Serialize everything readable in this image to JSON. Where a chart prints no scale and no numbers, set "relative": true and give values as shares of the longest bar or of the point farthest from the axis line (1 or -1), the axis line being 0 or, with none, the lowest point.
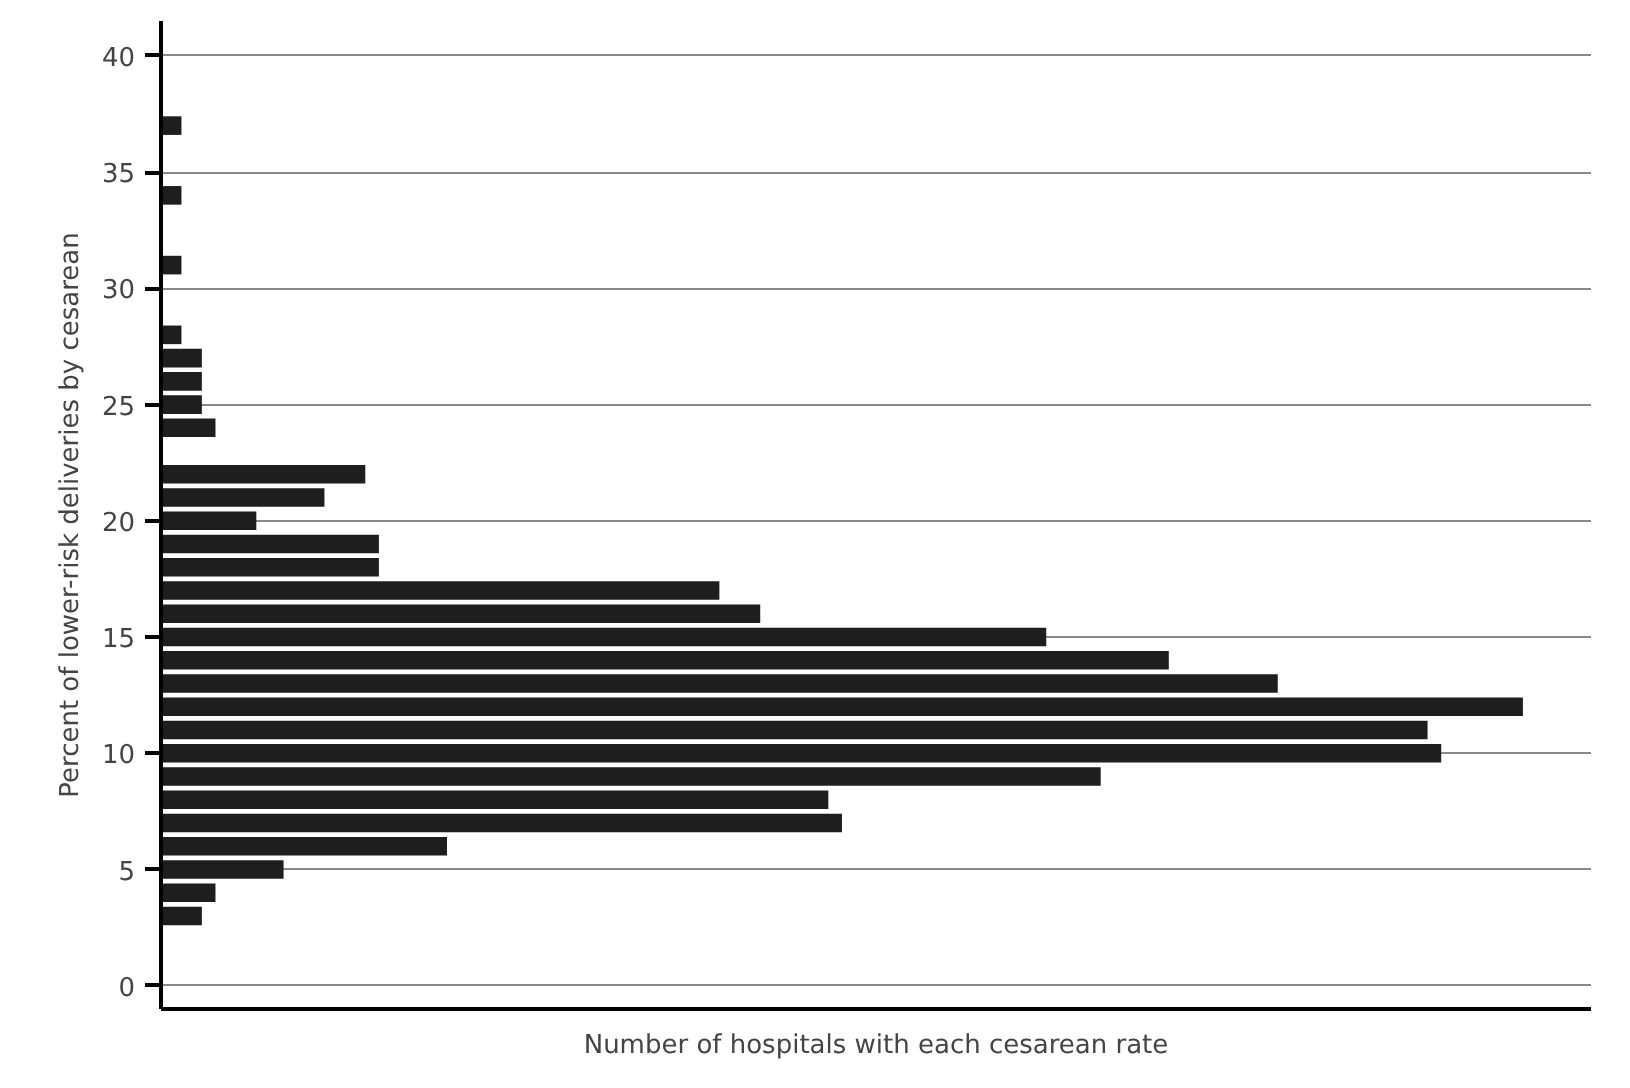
{
  "chart_data": {
    "type": "bar",
    "orientation": "horizontal",
    "relative": true,
    "xlabel": "Number of hospitals with each cesarean rate",
    "ylabel": "Percent of lower-risk deliveries by cesarean",
    "x": [
      3,
      4,
      5,
      6,
      7,
      8,
      9,
      10,
      11,
      12,
      13,
      14,
      15,
      16,
      17,
      18,
      19,
      20,
      21,
      22,
      24,
      25,
      26,
      27,
      28,
      31,
      34,
      37
    ],
    "values": [
      0.03,
      0.04,
      0.09,
      0.21,
      0.5,
      0.49,
      0.69,
      0.94,
      0.93,
      1,
      0.82,
      0.74,
      0.65,
      0.44,
      0.41,
      0.16,
      0.16,
      0.07,
      0.12,
      0.15,
      0.04,
      0.03,
      0.03,
      0.03,
      0.015,
      0.015,
      0.015,
      0.015
    ],
    "color": "#1e1e1e",
    "ylim": [
      -1,
      41.5
    ],
    "yticks": [
      0,
      5,
      10,
      15,
      20,
      25,
      30,
      35,
      40
    ],
    "grid": "y"
  }
}
